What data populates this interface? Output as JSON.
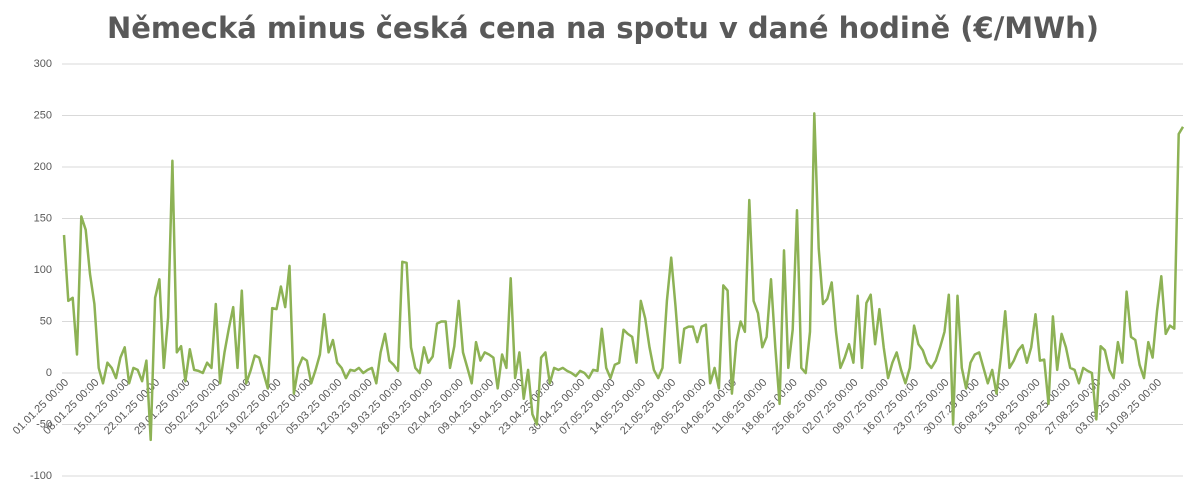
{
  "chart_data": {
    "type": "line",
    "title": "Německá minus česká cena na spotu v dané hodině (€/MWh)",
    "categories": [
      "01.01.25 00:00",
      null,
      null,
      null,
      null,
      null,
      null,
      "08.01.25 00:00",
      null,
      null,
      null,
      null,
      null,
      null,
      "15.01.25 00:00",
      null,
      null,
      null,
      null,
      null,
      null,
      "22.01.25 00:00",
      null,
      null,
      null,
      null,
      null,
      null,
      "29.01.25 00:00",
      null,
      null,
      null,
      null,
      null,
      null,
      "05.02.25 00:00",
      null,
      null,
      null,
      null,
      null,
      null,
      "12.02.25 00:00",
      null,
      null,
      null,
      null,
      null,
      null,
      "19.02.25 00:00",
      null,
      null,
      null,
      null,
      null,
      null,
      "26.02.25 00:00",
      null,
      null,
      null,
      null,
      null,
      null,
      "05.03.25 00:00",
      null,
      null,
      null,
      null,
      null,
      null,
      "12.03.25 00:00",
      null,
      null,
      null,
      null,
      null,
      null,
      "19.03.25 00:00",
      null,
      null,
      null,
      null,
      null,
      null,
      "26.03.25 00:00",
      null,
      null,
      null,
      null,
      null,
      null,
      "02.04.25 00:00",
      null,
      null,
      null,
      null,
      null,
      null,
      "09.04.25 00:00",
      null,
      null,
      null,
      null,
      null,
      null,
      "16.04.25 00:00",
      null,
      null,
      null,
      null,
      null,
      null,
      "23.04.25 00:00",
      null,
      null,
      null,
      null,
      null,
      null,
      "30.04.25 00:00",
      null,
      null,
      null,
      null,
      null,
      null,
      "07.05.25 00:00",
      null,
      null,
      null,
      null,
      null,
      null,
      "14.05.25 00:00",
      null,
      null,
      null,
      null,
      null,
      null,
      "21.05.25 00:00",
      null,
      null,
      null,
      null,
      null,
      null,
      "28.05.25 00:00",
      null,
      null,
      null,
      null,
      null,
      null,
      "04.06.25 00:00",
      null,
      null,
      null,
      null,
      null,
      null,
      "11.06.25 00:00",
      null,
      null,
      null,
      null,
      null,
      null,
      "18.06.25 00:00",
      null,
      null,
      null,
      null,
      null,
      null,
      "25.06.25 00:00",
      null,
      null,
      null,
      null,
      null,
      null,
      "02.07.25 00:00",
      null,
      null,
      null,
      null,
      null,
      null,
      "09.07.25 00:00",
      null,
      null,
      null,
      null,
      null,
      null,
      "16.07.25 00:00",
      null,
      null,
      null,
      null,
      null,
      null,
      "23.07.25 00:00",
      null,
      null,
      null,
      null,
      null,
      null,
      "30.07.25 00:00",
      null,
      null,
      null,
      null,
      null,
      null,
      "06.08.25 00:00",
      null,
      null,
      null,
      null,
      null,
      null,
      "13.08.25 00:00",
      null,
      null,
      null,
      null,
      null,
      null,
      "20.08.25 00:00",
      null,
      null,
      null,
      null,
      null,
      null,
      "27.08.25 00:00",
      null,
      null,
      null,
      null,
      null,
      null,
      "03.09.25 00:00",
      null,
      null,
      null,
      null,
      null,
      null,
      "10.09.25 00:00",
      null,
      null,
      null,
      null,
      null,
      null
    ],
    "values": [
      134,
      70,
      73,
      18,
      152,
      139,
      96,
      67,
      5,
      -10,
      10,
      5,
      -5,
      15,
      25,
      -10,
      5,
      3,
      -8,
      12,
      -65,
      73,
      91,
      5,
      54,
      206,
      20,
      26,
      -8,
      23,
      3,
      2,
      0,
      10,
      5,
      67,
      -10,
      20,
      43,
      64,
      5,
      80,
      -10,
      2,
      17,
      15,
      0,
      -15,
      63,
      62,
      84,
      64,
      104,
      -20,
      5,
      15,
      12,
      -10,
      3,
      18,
      57,
      20,
      32,
      10,
      5,
      -5,
      3,
      2,
      5,
      0,
      3,
      5,
      -10,
      20,
      38,
      12,
      8,
      2,
      108,
      107,
      25,
      5,
      0,
      25,
      10,
      16,
      48,
      50,
      50,
      5,
      26,
      70,
      20,
      5,
      -10,
      30,
      12,
      20,
      18,
      15,
      -15,
      18,
      5,
      92,
      -5,
      20,
      -25,
      3,
      -40,
      -50,
      15,
      20,
      -10,
      5,
      3,
      5,
      2,
      0,
      -3,
      2,
      0,
      -5,
      3,
      2,
      43,
      5,
      -5,
      8,
      10,
      42,
      38,
      35,
      10,
      70,
      53,
      25,
      3,
      -5,
      5,
      70,
      112,
      65,
      10,
      43,
      45,
      45,
      30,
      45,
      47,
      -10,
      5,
      -15,
      85,
      80,
      -20,
      30,
      50,
      40,
      168,
      70,
      58,
      25,
      35,
      91,
      25,
      -30,
      119,
      5,
      42,
      158,
      5,
      0,
      40,
      252,
      121,
      67,
      72,
      88,
      40,
      5,
      15,
      28,
      10,
      75,
      5,
      68,
      76,
      28,
      62,
      25,
      -5,
      10,
      20,
      3,
      -10,
      5,
      46,
      28,
      22,
      10,
      5,
      12,
      25,
      40,
      76,
      -50,
      75,
      5,
      -15,
      10,
      18,
      20,
      5,
      -10,
      3,
      -20,
      15,
      60,
      5,
      12,
      22,
      27,
      10,
      25,
      57,
      12,
      13,
      -30,
      55,
      3,
      38,
      25,
      5,
      3,
      -10,
      5,
      2,
      0,
      -45,
      26,
      22,
      3,
      -5,
      30,
      10,
      79,
      35,
      32,
      8,
      -5,
      30,
      15,
      60,
      94,
      38,
      46,
      43,
      232,
      239
    ],
    "color": "#8db255",
    "ylim": [
      -100,
      300
    ],
    "yticks": [
      -100,
      -50,
      0,
      50,
      100,
      150,
      200,
      250,
      300
    ],
    "grid": true
  }
}
